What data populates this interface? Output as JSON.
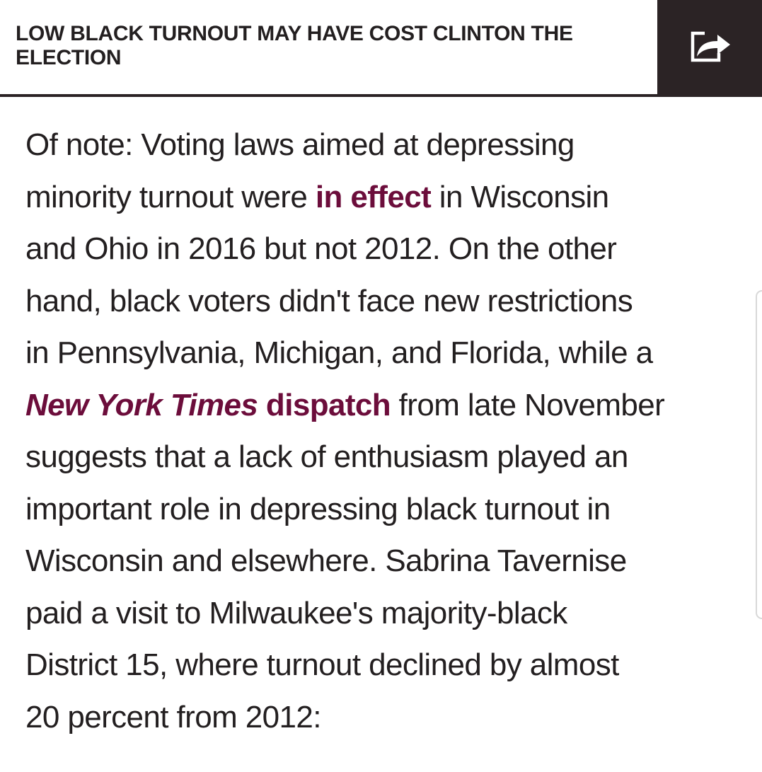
{
  "header": {
    "title": "LOW BLACK TURNOUT MAY HAVE COST CLINTON THE ELECTION",
    "share_icon": "share-arrow-icon"
  },
  "colors": {
    "text": "#231f20",
    "link": "#6c0d3b",
    "header_bar": "#2b2325"
  },
  "article": {
    "seg1": "Of note: Voting laws aimed at depressing",
    "seg2": "minority turnout were ",
    "link1": "in effect",
    "seg3": " in Wisconsin",
    "seg4": "and Ohio in 2016 but not 2012. On the other",
    "seg5": "hand, black voters didn't face new restrictions",
    "seg6": "in Pennsylvania, Michigan, and Florida, while a",
    "link2_italic": "New York Times",
    "link2_rest": " dispatch",
    "seg7": " from late November",
    "seg8": "suggests that a lack of enthusiasm played an",
    "seg9": "important role in depressing black turnout in",
    "seg10": "Wisconsin and elsewhere. Sabrina Tavernise",
    "seg11": "paid a visit to Milwaukee's majority-black",
    "seg12": "District 15, where turnout declined by almost",
    "seg13": "20 percent from 2012:"
  }
}
